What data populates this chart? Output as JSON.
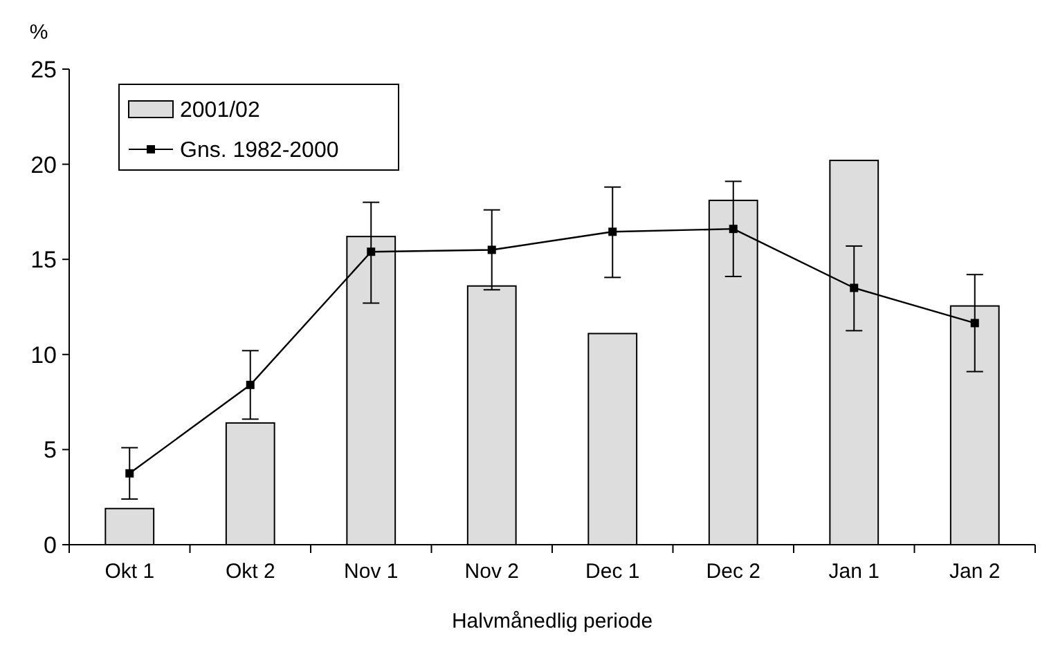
{
  "chart_data": {
    "type": "bar",
    "ylabel": "%",
    "xlabel": "Halvmånedlig periode",
    "categories": [
      "Okt 1",
      "Okt 2",
      "Nov 1",
      "Nov 2",
      "Dec 1",
      "Dec 2",
      "Jan 1",
      "Jan 2"
    ],
    "series": [
      {
        "name": "2001/02",
        "color": "#dddddd",
        "values": [
          1.9,
          6.4,
          16.2,
          13.6,
          11.1,
          18.1,
          20.2,
          12.55
        ]
      },
      {
        "name": "Gns. 1982-2000",
        "type": "line",
        "color": "#000000",
        "marker": "square",
        "values": [
          3.75,
          8.4,
          15.4,
          15.5,
          16.45,
          16.6,
          13.5,
          11.65
        ],
        "errors": [
          [
            2.4,
            5.1
          ],
          [
            6.6,
            10.2
          ],
          [
            12.7,
            18.0
          ],
          [
            13.4,
            17.6
          ],
          [
            14.05,
            18.8
          ],
          [
            14.1,
            19.1
          ],
          [
            11.25,
            15.7
          ],
          [
            9.1,
            14.2
          ]
        ]
      }
    ],
    "ylim": [
      0,
      25
    ],
    "yticks": [
      0,
      5,
      10,
      15,
      20,
      25
    ],
    "legend": "top left"
  }
}
